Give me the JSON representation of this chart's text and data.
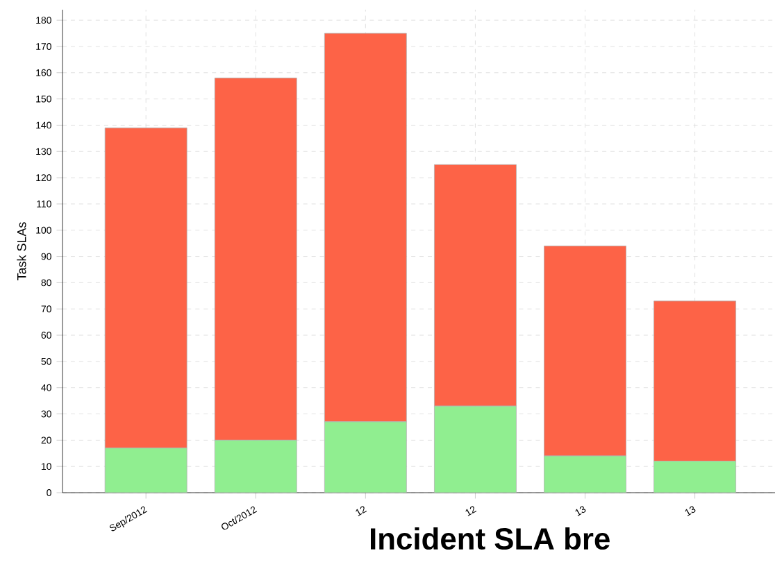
{
  "chart_data": {
    "type": "bar",
    "title": "Incident SLA bre",
    "ylabel": "Task SLAs",
    "categories": [
      "Sep/2012",
      "Oct/2012",
      "12",
      "12",
      "13",
      "13"
    ],
    "stacked": true,
    "series": [
      {
        "color": "#90ee90",
        "values": [
          17,
          20,
          27,
          33,
          14,
          12
        ]
      },
      {
        "color": "#fd6347",
        "values": [
          122,
          138,
          148,
          92,
          80,
          61
        ]
      }
    ],
    "ylim": [
      0,
      184
    ],
    "yticks": [
      0,
      10,
      20,
      30,
      40,
      50,
      60,
      70,
      80,
      90,
      100,
      110,
      120,
      130,
      140,
      150,
      160,
      170,
      180
    ],
    "grid": true
  }
}
